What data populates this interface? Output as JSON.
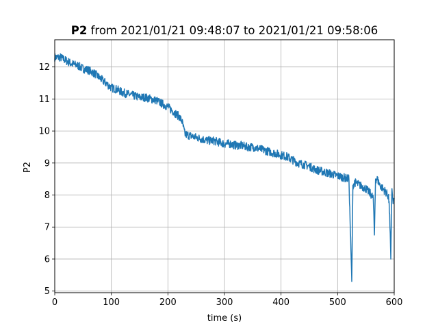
{
  "chart_data": {
    "type": "line",
    "title": {
      "bold": "P2",
      "rest": " from 2021/01/21 09:48:07 to 2021/01/21 09:58:06"
    },
    "xlabel": "time (s)",
    "ylabel": "P2",
    "xlim": [
      0,
      600
    ],
    "ylim": [
      4.95,
      12.85
    ],
    "xticks": [
      0,
      100,
      200,
      300,
      400,
      500,
      600
    ],
    "yticks": [
      5,
      6,
      7,
      8,
      9,
      10,
      11,
      12
    ],
    "grid": true,
    "legend": "none",
    "colors": {
      "line": "#1f77b4",
      "grid": "#b0b0b0",
      "axes": "#000000"
    },
    "series": [
      {
        "noise_amplitude": 0.13,
        "x": [
          0,
          10,
          20,
          30,
          40,
          50,
          60,
          70,
          80,
          90,
          100,
          110,
          120,
          130,
          140,
          150,
          160,
          170,
          180,
          190,
          200,
          210,
          220,
          225,
          230,
          240,
          250,
          260,
          270,
          280,
          290,
          300,
          310,
          320,
          330,
          340,
          350,
          360,
          370,
          380,
          390,
          400,
          410,
          420,
          430,
          440,
          450,
          460,
          470,
          480,
          490,
          500,
          510,
          520,
          525,
          527,
          530,
          540,
          550,
          555,
          560,
          563,
          565,
          567,
          570,
          575,
          580,
          585,
          590,
          592,
          594,
          596,
          598,
          600
        ],
        "y": [
          12.3,
          12.3,
          12.2,
          12.1,
          12.05,
          11.95,
          11.9,
          11.8,
          11.65,
          11.5,
          11.35,
          11.3,
          11.2,
          11.15,
          11.1,
          11.05,
          11.05,
          11.0,
          10.95,
          10.85,
          10.75,
          10.6,
          10.45,
          10.3,
          9.9,
          9.85,
          9.8,
          9.75,
          9.7,
          9.7,
          9.65,
          9.6,
          9.6,
          9.55,
          9.55,
          9.5,
          9.5,
          9.45,
          9.4,
          9.35,
          9.3,
          9.25,
          9.2,
          9.1,
          9.0,
          8.95,
          8.9,
          8.8,
          8.75,
          8.7,
          8.65,
          8.6,
          8.55,
          8.5,
          5.3,
          8.3,
          8.4,
          8.3,
          8.2,
          8.1,
          8.0,
          7.9,
          6.75,
          8.5,
          8.5,
          8.3,
          8.2,
          8.1,
          7.95,
          7.4,
          6.0,
          8.2,
          7.8,
          7.9
        ]
      }
    ]
  }
}
